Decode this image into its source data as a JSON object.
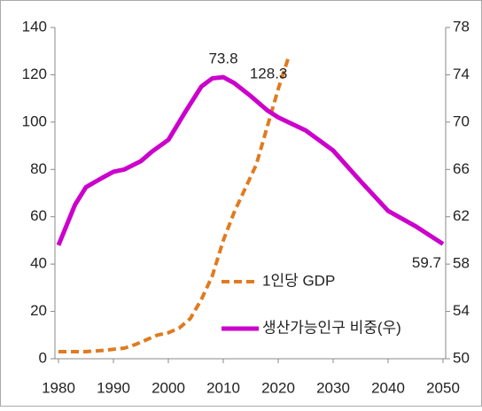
{
  "chart_data": {
    "type": "line",
    "xlim": [
      1980,
      2050
    ],
    "xticks": [
      1980,
      1990,
      2000,
      2010,
      2020,
      2030,
      2040,
      2050
    ],
    "ylim": [
      0,
      140
    ],
    "yticks": [
      0,
      20,
      40,
      60,
      80,
      100,
      120,
      140
    ],
    "y2lim": [
      50,
      78
    ],
    "y2ticks": [
      50,
      54,
      58,
      62,
      66,
      70,
      74,
      78
    ],
    "legend": "lower right",
    "series": [
      {
        "name": "1인당 GDP",
        "color": "#e07b20",
        "dash": true,
        "axis": "y",
        "x": [
          1980,
          1985,
          1988,
          1990,
          1992,
          1994,
          1996,
          1998,
          2000,
          2002,
          2004,
          2006,
          2008,
          2010,
          2012,
          2014,
          2016,
          2018,
          2020,
          2022
        ],
        "values": [
          3,
          3,
          3.5,
          4,
          4.5,
          6,
          8,
          10,
          11,
          13,
          17,
          25,
          35,
          50,
          62,
          72,
          82,
          98,
          114,
          128.3
        ],
        "value_labels": [
          null,
          null,
          null,
          null,
          null,
          null,
          null,
          null,
          null,
          null,
          null,
          null,
          null,
          null,
          null,
          null,
          null,
          null,
          null,
          "128.3"
        ]
      },
      {
        "name": "생산가능인구 비중(우)",
        "color": "#cc00cc",
        "dash": false,
        "axis": "y2",
        "x": [
          1980,
          1983,
          1985,
          1988,
          1990,
          1992,
          1995,
          1997,
          2000,
          2003,
          2006,
          2008,
          2010,
          2012,
          2015,
          2018,
          2020,
          2025,
          2030,
          2035,
          2040,
          2045,
          2050
        ],
        "values": [
          59.6,
          63,
          64.5,
          65.3,
          65.8,
          66,
          66.7,
          67.5,
          68.5,
          70.8,
          73,
          73.7,
          73.8,
          73.3,
          72.2,
          71,
          70.4,
          69.3,
          67.6,
          65,
          62.5,
          61.2,
          59.7
        ],
        "value_labels": [
          null,
          null,
          null,
          null,
          null,
          null,
          null,
          null,
          null,
          null,
          null,
          null,
          "73.8",
          null,
          null,
          null,
          null,
          null,
          null,
          null,
          null,
          null,
          "59.7"
        ]
      }
    ]
  }
}
